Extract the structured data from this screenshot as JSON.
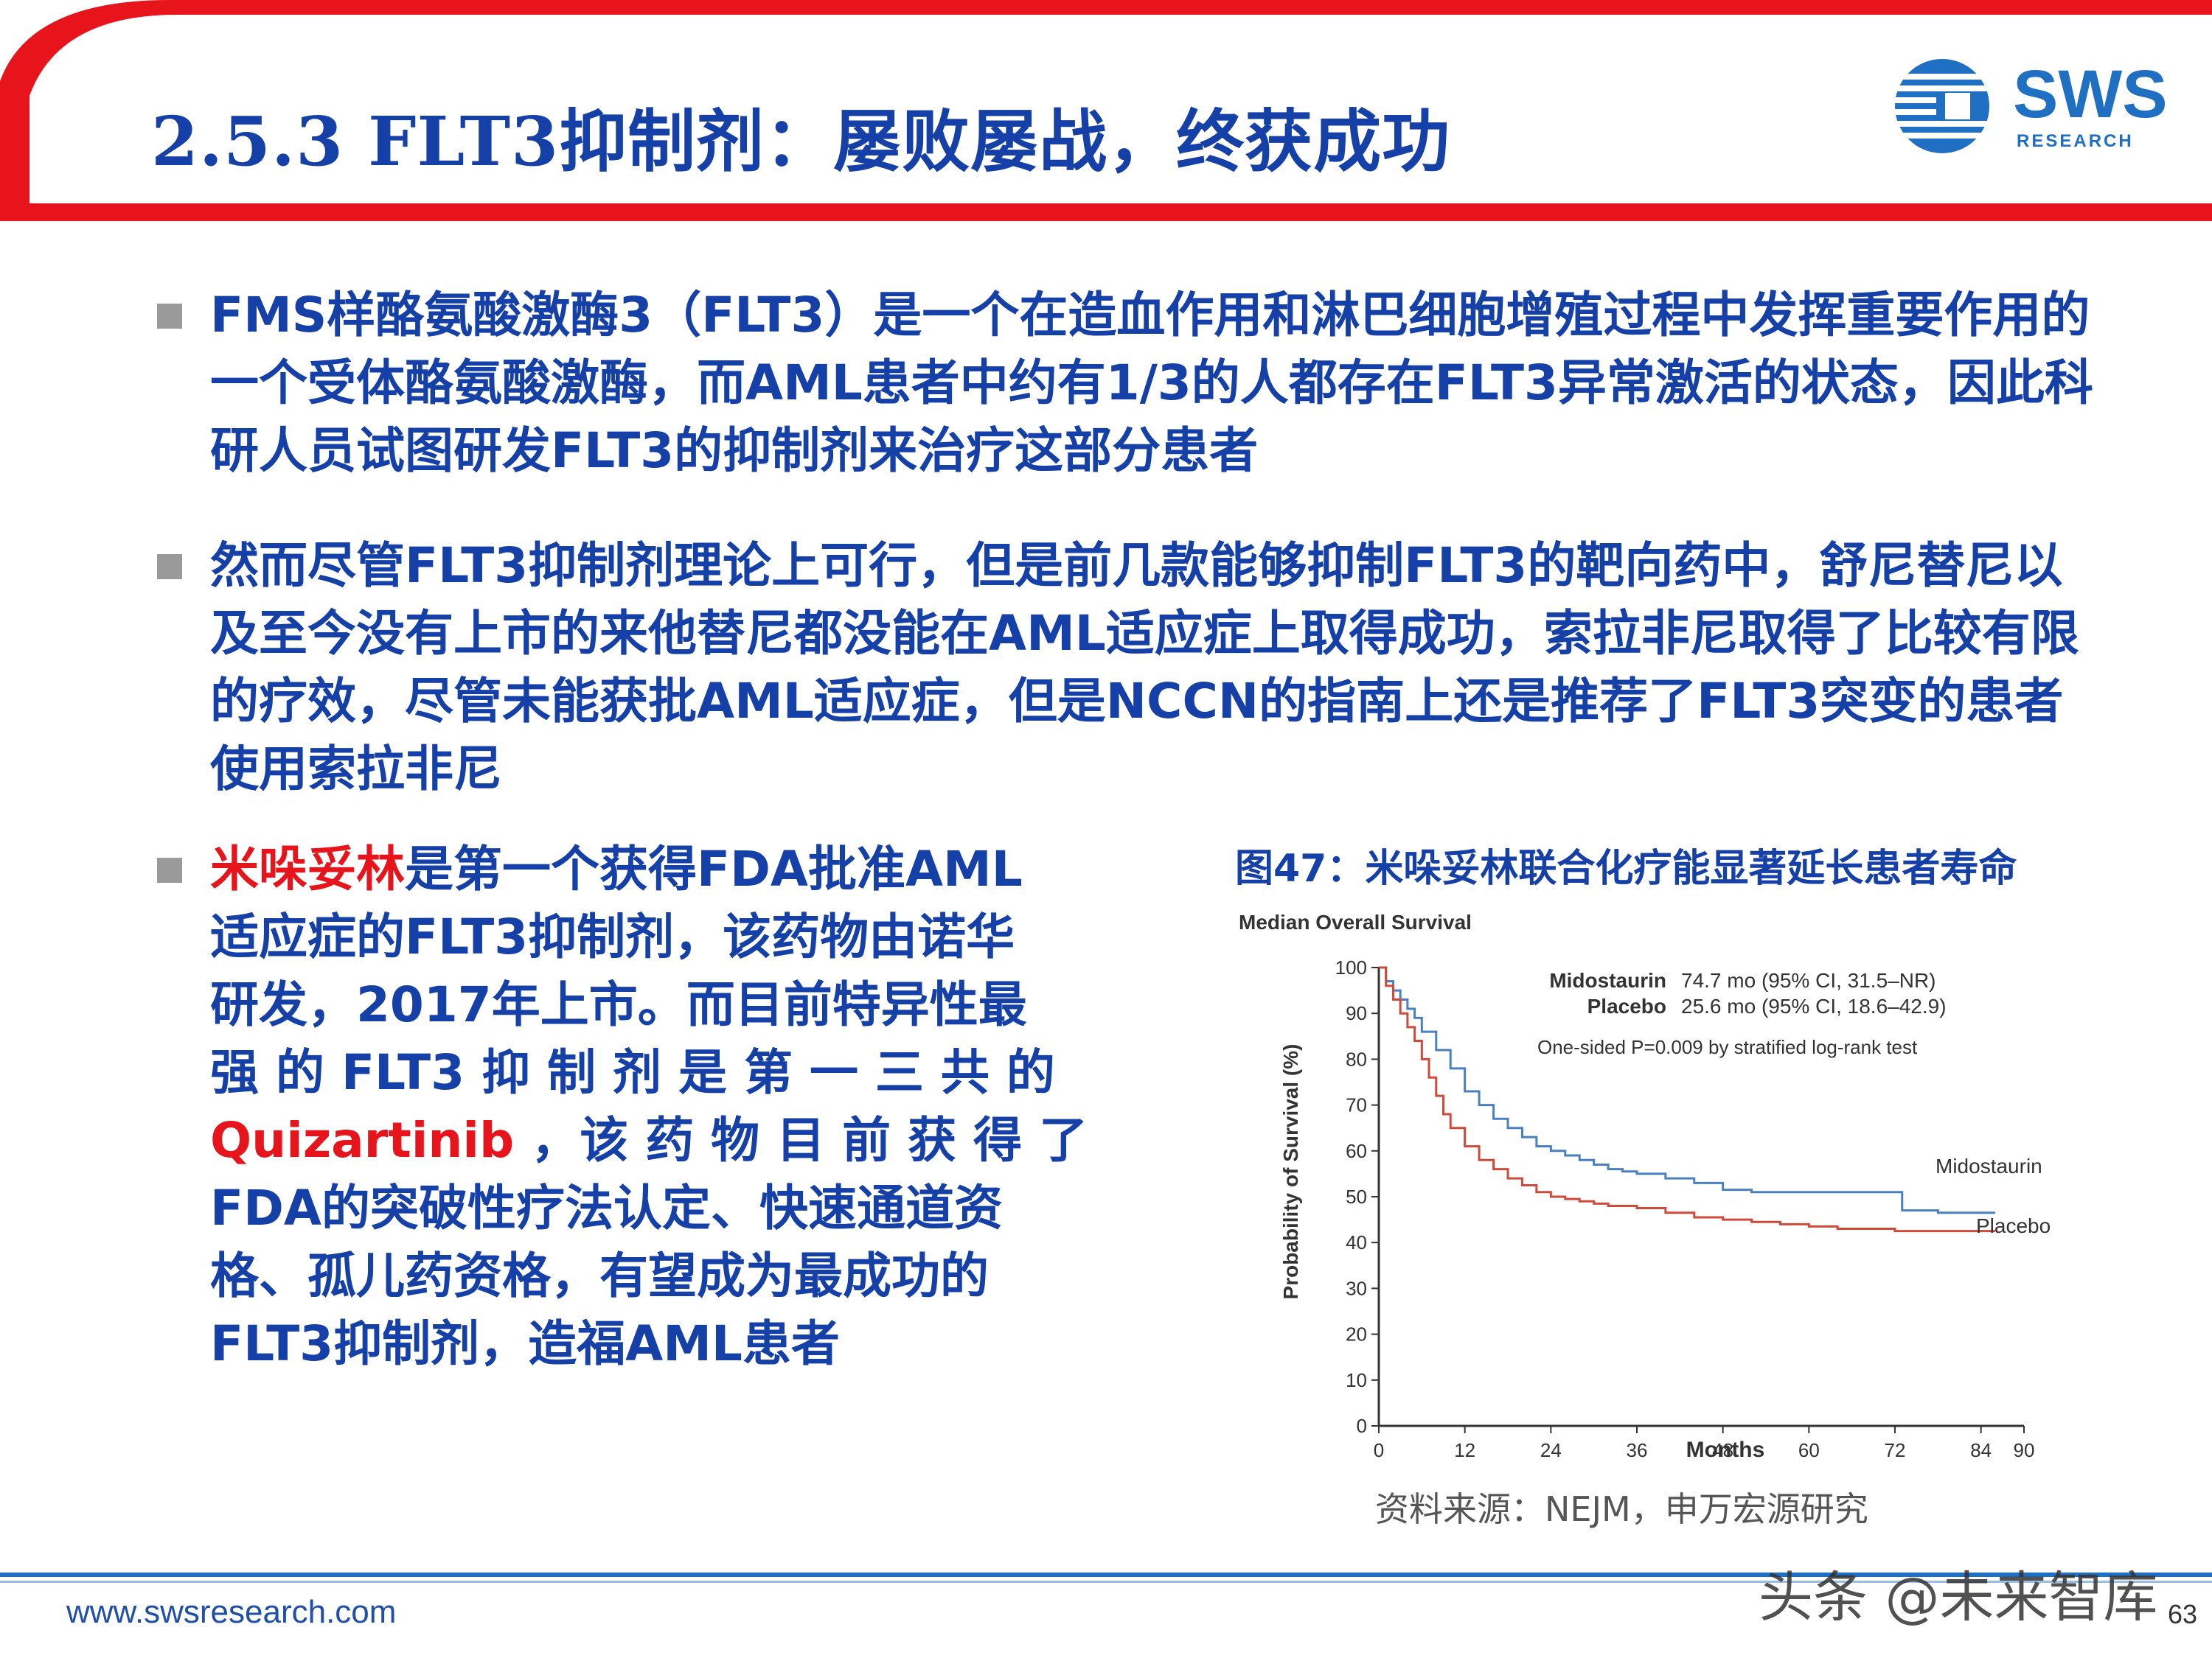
{
  "header": {
    "title": "2.5.3 FLT3抑制剂：屡败屡战，终获成功",
    "logo_text": "SWS",
    "logo_sub": "RESEARCH"
  },
  "bullets": {
    "b1": "FMS样酪氨酸激酶3（FLT3）是一个在造血作用和淋巴细胞增殖过程中发挥重要作用的一个受体酪氨酸激酶，而AML患者中约有1/3的人都存在FLT3异常激活的状态，因此科研人员试图研发FLT3的抑制剂来治疗这部分患者",
    "b2": "然而尽管FLT3抑制剂理论上可行，但是前几款能够抑制FLT3的靶向药中，舒尼替尼以及至今没有上市的来他替尼都没能在AML适应症上取得成功，索拉非尼取得了比较有限的疗效，尽管未能获批AML适应症，但是NCCN的指南上还是推荐了FLT3突变的患者使用索拉非尼",
    "b3": {
      "highlight1": "米哚妥林",
      "l1_rest": "是第一个获得FDA批准AML",
      "l2": "适应症的FLT3抑制剂，该药物由诺华",
      "l3": "研发，2017年上市。而目前特异性最",
      "l4": "强 的 FLT3 抑 制 剂 是 第 一 三 共 的",
      "highlight2": "Quizartinib",
      "l5_rest": " ，该 药 物 目 前 获 得 了",
      "l6": "FDA的突破性疗法认定、快速通道资",
      "l7": "格、孤儿药资格，有望成为最成功的",
      "l8": "FLT3抑制剂，造福AML患者"
    }
  },
  "figure": {
    "title": "图47：米哚妥林联合化疗能显著延长患者寿命",
    "source": "资料来源：NEJM，申万宏源研究"
  },
  "chart_data": {
    "type": "line",
    "title": "Median Overall Survival",
    "xlabel": "Months",
    "ylabel": "Probability of Survival (%)",
    "xlim": [
      0,
      90
    ],
    "ylim": [
      0,
      100
    ],
    "x_ticks": [
      "0",
      "12",
      "24",
      "36",
      "48",
      "60",
      "72",
      "84",
      "90"
    ],
    "y_ticks": [
      "0",
      "10",
      "20",
      "30",
      "40",
      "50",
      "60",
      "70",
      "80",
      "90",
      "100"
    ],
    "legend": [
      {
        "name": "Midostaurin",
        "text": "74.7 mo (95% CI, 31.5–NR)"
      },
      {
        "name": "Placebo",
        "text": "25.6 mo (95% CI, 18.6–42.9)"
      }
    ],
    "annotation": "One-sided P=0.009 by stratified log-rank test",
    "series": [
      {
        "name": "Midostaurin",
        "color": "#4a7fc0",
        "x": [
          0,
          1,
          2,
          3,
          4,
          5,
          6,
          8,
          10,
          12,
          14,
          16,
          18,
          20,
          22,
          24,
          26,
          28,
          30,
          32,
          34,
          36,
          40,
          44,
          48,
          52,
          56,
          60,
          64,
          68,
          72,
          73,
          78,
          84,
          86
        ],
        "y": [
          100,
          97,
          95,
          93,
          91,
          89,
          86,
          82,
          78,
          73,
          70,
          67,
          65,
          63,
          61,
          60,
          59,
          58,
          57,
          56,
          55.5,
          55,
          54,
          53,
          51.5,
          51,
          51,
          51,
          51,
          51,
          51,
          47,
          46.5,
          46.5,
          46.5
        ]
      },
      {
        "name": "Placebo",
        "color": "#d04a3a",
        "x": [
          0,
          1,
          2,
          3,
          4,
          5,
          6,
          7,
          8,
          9,
          10,
          12,
          14,
          16,
          18,
          20,
          22,
          24,
          26,
          28,
          30,
          32,
          36,
          40,
          44,
          48,
          52,
          56,
          60,
          64,
          68,
          72,
          78,
          86
        ],
        "y": [
          100,
          96,
          93,
          90,
          87,
          84,
          80,
          76,
          72,
          68,
          65,
          61,
          58,
          56,
          54,
          52.5,
          51,
          50,
          49.5,
          49,
          48.5,
          48,
          47.5,
          46.5,
          45.5,
          45,
          44.5,
          44,
          43.5,
          43,
          43,
          42.5,
          42.5,
          42.5
        ]
      }
    ],
    "series_labels": {
      "Midostaurin": "Midostaurin",
      "Placebo": "Placebo"
    },
    "grid": false
  },
  "footer": {
    "website": "www.swsresearch.com",
    "page": "63",
    "watermark": "头条 @未来智库"
  }
}
